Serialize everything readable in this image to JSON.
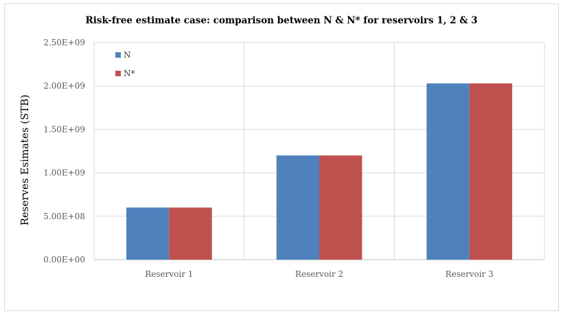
{
  "chart_data": {
    "type": "bar",
    "title": "Risk-free estimate case:  comparison between N & N* for reservoirs 1, 2 & 3",
    "xlabel": "",
    "ylabel": "Reserves Esimates (STB)",
    "categories": [
      "Reservoir 1",
      "Reservoir 2",
      "Reservoir 3"
    ],
    "series": [
      {
        "name": "N",
        "color": "#4f81bd",
        "values": [
          600000000,
          1200000000,
          2030000000
        ]
      },
      {
        "name": "N*",
        "color": "#c0504d",
        "values": [
          600000000,
          1200000000,
          2030000000
        ]
      }
    ],
    "ylim": [
      0,
      2500000000
    ],
    "yticks": [
      0,
      500000000,
      1000000000,
      1500000000,
      2000000000,
      2500000000
    ],
    "ytick_labels": [
      "0.00E+00",
      "5.00E+08",
      "1.00E+09",
      "1.50E+09",
      "2.00E+09",
      "2.50E+09"
    ],
    "grid": true,
    "legend_position": "top-left"
  }
}
